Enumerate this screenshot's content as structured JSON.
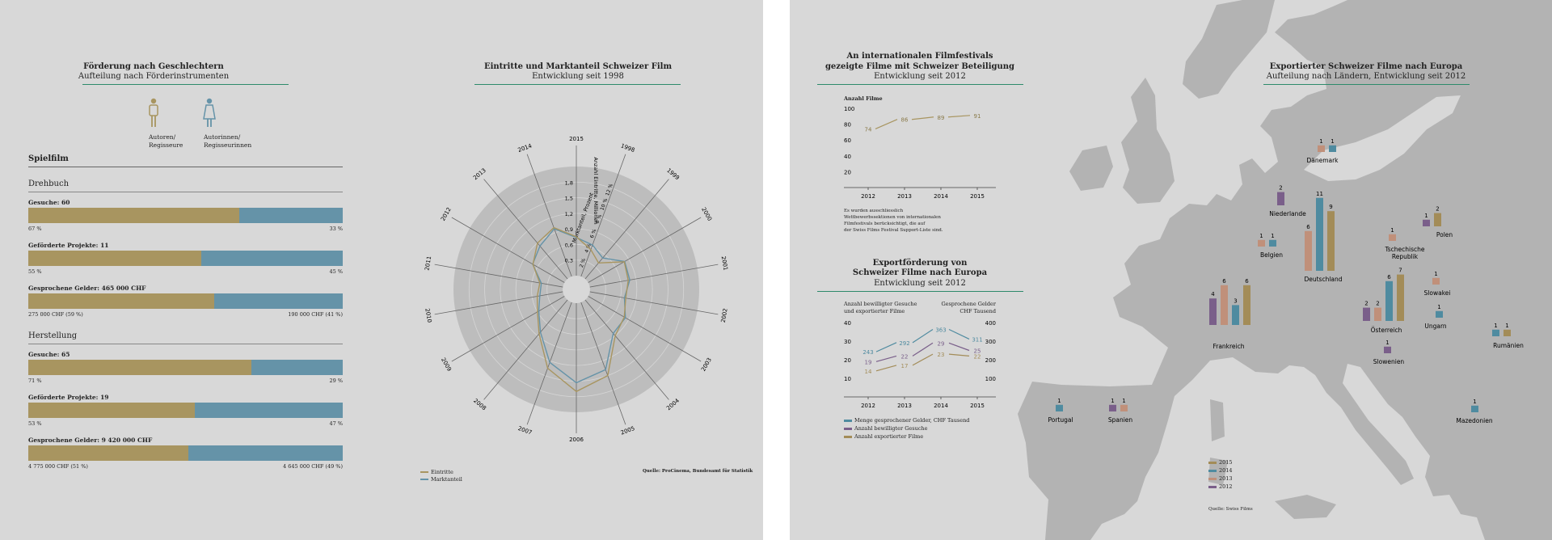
{
  "colors": {
    "gold": "#a89560",
    "blue": "#6593a8",
    "purple": "#7a5f8a",
    "salmon": "#c0907a",
    "teal": "#4f8ba0",
    "olive": "#a38c58",
    "green": "#2d8a6b"
  },
  "gender": {
    "title": "Förderung nach Geschlechtern",
    "subtitle": "Aufteilung nach Förderinstrumenten",
    "legend_male": [
      "Autoren/",
      "Regisseure"
    ],
    "legend_female": [
      "Autorinnen/",
      "Regisseurinnen"
    ],
    "section": "Spielfilm",
    "groups": [
      {
        "name": "Drehbuch",
        "rows": [
          {
            "label": "Gesuche: 60",
            "left": "67 %",
            "right": "33 %",
            "share": 0.67
          },
          {
            "label": "Geförderte Projekte: 11",
            "left": "55 %",
            "right": "45 %",
            "share": 0.55
          },
          {
            "label": "Gesprochene Gelder: 465 000 CHF",
            "left": "275 000 CHF (59 %)",
            "right": "190 000 CHF (41 %)",
            "share": 0.59
          }
        ]
      },
      {
        "name": "Herstellung",
        "rows": [
          {
            "label": "Gesuche: 65",
            "left": "71 %",
            "right": "29 %",
            "share": 0.71
          },
          {
            "label": "Geförderte Projekte: 19",
            "left": "53 %",
            "right": "47 %",
            "share": 0.53
          },
          {
            "label": "Gesprochene Gelder: 9 420 000 CHF",
            "left": "4 775 000 CHF (51 %)",
            "right": "4 645 000 CHF (49 %)",
            "share": 0.51
          }
        ]
      }
    ]
  },
  "radar": {
    "title": "Eintritte und Marktanteil Schweizer Film",
    "subtitle": "Entwicklung seit 1998",
    "axis1_label": "Anzahl Eintritte, Millionen",
    "axis2_label": "Marktanteil, Prozent",
    "axis1_ticks": [
      "0,3",
      "0,6",
      "0,9",
      "1,2",
      "1,5",
      "1,8"
    ],
    "axis2_ticks": [
      "2 %",
      "4 %",
      "6 %",
      "8 %",
      "10 %",
      "12 %"
    ],
    "years": [
      "2015",
      "1998",
      "1999",
      "2000",
      "2001",
      "2002",
      "2003",
      "2004",
      "2005",
      "2006",
      "2007",
      "2008",
      "2009",
      "2010",
      "2011",
      "2012",
      "2013",
      "2014"
    ],
    "legend": [
      "Eintritte",
      "Marktanteil"
    ],
    "source": "Quelle: ProCinema, Bundesamt für Statistik"
  },
  "chart_data": [
    {
      "type": "bar",
      "title": "Förderung nach Geschlechtern",
      "subtitle": "Aufteilung nach Förderinstrumenten",
      "categories": [
        "Drehbuch Gesuche",
        "Drehbuch Geförderte Projekte",
        "Drehbuch Gesprochene Gelder",
        "Herstellung Gesuche",
        "Herstellung Geförderte Projekte",
        "Herstellung Gesprochene Gelder"
      ],
      "series": [
        {
          "name": "Autoren/Regisseure",
          "values": [
            67,
            55,
            59,
            71,
            53,
            51
          ]
        },
        {
          "name": "Autorinnen/Regisseurinnen",
          "values": [
            33,
            45,
            41,
            29,
            47,
            49
          ]
        }
      ]
    },
    {
      "type": "radar",
      "title": "Eintritte und Marktanteil Schweizer Film",
      "subtitle": "Entwicklung seit 1998",
      "categories": [
        "1998",
        "1999",
        "2000",
        "2001",
        "2002",
        "2003",
        "2004",
        "2005",
        "2006",
        "2007",
        "2008",
        "2009",
        "2010",
        "2011",
        "2012",
        "2013",
        "2014",
        "2015"
      ],
      "series": [
        {
          "name": "Eintritte",
          "values": [
            0.55,
            0.4,
            0.8,
            0.75,
            0.7,
            0.8,
            0.9,
            1.5,
            1.7,
            1.35,
            0.85,
            0.6,
            0.5,
            0.45,
            0.7,
            0.9,
            1.0,
            0.75
          ]
        },
        {
          "name": "Marktanteil",
          "values": [
            4.3,
            3.5,
            5.4,
            5.2,
            4.5,
            5.5,
            5.6,
            9.2,
            10.2,
            8.2,
            5.4,
            3.8,
            3.0,
            2.8,
            4.7,
            5.5,
            6.5,
            4.9
          ]
        }
      ],
      "ylim": [
        0,
        2.1
      ]
    },
    {
      "type": "line",
      "title": "An internationalen Filmfestivals gezeigte Filme mit Schweizer Beteiligung",
      "subtitle": "Entwicklung seit 2012",
      "ylabel": "Anzahl Filme",
      "x": [
        2012,
        2013,
        2014,
        2015
      ],
      "values": [
        74,
        86,
        89,
        91
      ],
      "ylim": [
        0,
        100
      ]
    },
    {
      "type": "line",
      "title": "Exportförderung von Schweizer Filme nach Europa",
      "subtitle": "Entwicklung seit 2012",
      "x": [
        2012,
        2013,
        2014,
        2015
      ],
      "series": [
        {
          "name": "Menge gesprochener Gelder, CHF Tausend",
          "values": [
            243,
            292,
            363,
            311
          ]
        },
        {
          "name": "Anzahl bewilligter Gesuche",
          "values": [
            19,
            22,
            29,
            25
          ]
        },
        {
          "name": "Anzahl exportierter Filme",
          "values": [
            14,
            17,
            23,
            22
          ]
        }
      ],
      "ylim": [
        0,
        40
      ],
      "y2lim": [
        0,
        400
      ]
    },
    {
      "type": "bar",
      "title": "Exportierter Schweizer Filme nach Europa",
      "subtitle": "Aufteilung nach Ländern, Entwicklung seit 2012",
      "series_names": [
        "2012",
        "2013",
        "2014",
        "2015"
      ],
      "countries": [
        {
          "name": "Dänemark",
          "values": [
            null,
            1,
            1,
            null
          ]
        },
        {
          "name": "Niederlande",
          "values": [
            2,
            null,
            null,
            null
          ]
        },
        {
          "name": "Belgien",
          "values": [
            null,
            1,
            1,
            null
          ]
        },
        {
          "name": "Deutschland",
          "values": [
            null,
            6,
            11,
            9
          ]
        },
        {
          "name": "Polen",
          "values": [
            1,
            null,
            null,
            2
          ]
        },
        {
          "name": "Tschechische Republik",
          "values": [
            null,
            1,
            null,
            null
          ]
        },
        {
          "name": "Slowakei",
          "values": [
            null,
            1,
            null,
            null
          ]
        },
        {
          "name": "Ungarn",
          "values": [
            null,
            null,
            1,
            null
          ]
        },
        {
          "name": "Österreich",
          "values": [
            2,
            2,
            6,
            7
          ]
        },
        {
          "name": "Frankreich",
          "values": [
            4,
            6,
            3,
            6
          ]
        },
        {
          "name": "Slowenien",
          "values": [
            1,
            null,
            null,
            null
          ]
        },
        {
          "name": "Rumänien",
          "values": [
            null,
            null,
            1,
            1
          ]
        },
        {
          "name": "Portugal",
          "values": [
            null,
            null,
            1,
            null
          ]
        },
        {
          "name": "Spanien",
          "values": [
            1,
            1,
            null,
            null
          ]
        },
        {
          "name": "Mazedonien",
          "values": [
            null,
            null,
            1,
            null
          ]
        }
      ]
    }
  ],
  "festival": {
    "title1": "An internationalen Filmfestivals",
    "title2": "gezeigte Filme mit Schweizer Beteiligung",
    "subtitle": "Entwicklung seit 2012",
    "ylabel": "Anzahl Filme",
    "yticks": [
      "100",
      "80",
      "60",
      "40",
      "20"
    ],
    "xticks": [
      "2012",
      "2013",
      "2014",
      "2015"
    ],
    "points": [
      "74",
      "86",
      "89",
      "91"
    ],
    "note": [
      "Es wurden ausschliesslich",
      "Wettbewerbssektionen von internationalen",
      "Filmfestivals berücksichtigt, die auf",
      "der Swiss Films Festival Support-Liste sind."
    ]
  },
  "export": {
    "title1": "Exportförderung von",
    "title2": "Schweizer Filme nach Europa",
    "subtitle": "Entwicklung seit 2012",
    "left_label": [
      "Anzahl bewilligter Gesuche",
      "und exportierter Filme"
    ],
    "right_label": [
      "Gesprochene Gelder",
      "CHF Tausend"
    ],
    "yticks_left": [
      "40",
      "30",
      "20",
      "10"
    ],
    "yticks_right": [
      "400",
      "300",
      "200",
      "100"
    ],
    "xticks": [
      "2012",
      "2013",
      "2014",
      "2015"
    ],
    "money": [
      "243",
      "292",
      "363",
      "311"
    ],
    "requests": [
      "19",
      "22",
      "29",
      "25"
    ],
    "films": [
      "14",
      "17",
      "23",
      "22"
    ],
    "legend": [
      "Menge gesprochener Gelder, CHF Tausend",
      "Anzahl bewilligter Gesuche",
      "Anzahl exportierter Filme"
    ]
  },
  "map": {
    "title": "Exportierter Schweizer Filme nach Europa",
    "subtitle": "Aufteilung nach Ländern, Entwicklung seit 2012",
    "legend": [
      "2015",
      "2014",
      "2013",
      "2012"
    ],
    "source": "Quelle: Swiss Films"
  }
}
